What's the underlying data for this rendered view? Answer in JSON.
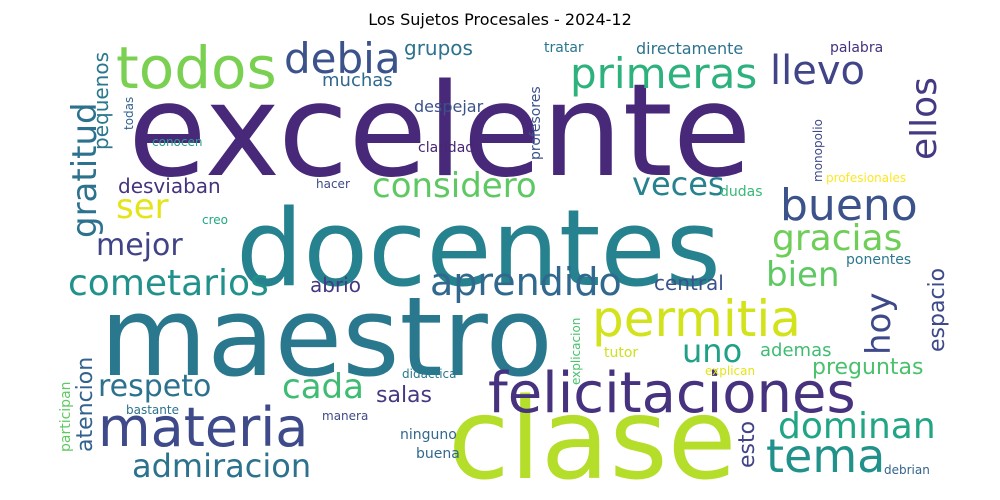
{
  "chart_data": {
    "type": "wordcloud",
    "title": "Los Sujetos Procesales - 2024-12",
    "palette": "viridis",
    "words": [
      {
        "text": "excelente",
        "color": "#482878"
      },
      {
        "text": "docentes",
        "color": "#26828e"
      },
      {
        "text": "maestro",
        "color": "#2a788e"
      },
      {
        "text": "clase",
        "color": "#b5de2b"
      },
      {
        "text": "felicitaciones",
        "color": "#46327e"
      },
      {
        "text": "todos",
        "color": "#7ad151"
      },
      {
        "text": "materia",
        "color": "#3e4a89"
      },
      {
        "text": "permitia",
        "color": "#d2e21b"
      },
      {
        "text": "primeras",
        "color": "#2db27d"
      },
      {
        "text": "debia",
        "color": "#3b528b"
      },
      {
        "text": "bueno",
        "color": "#3b528b"
      },
      {
        "text": "tema",
        "color": "#21918c"
      },
      {
        "text": "considero",
        "color": "#5ec962"
      },
      {
        "text": "aprendido",
        "color": "#31688e"
      },
      {
        "text": "cometarios",
        "color": "#21918c"
      },
      {
        "text": "gratitud",
        "color": "#2c728e"
      },
      {
        "text": "respeto",
        "color": "#2c728e"
      },
      {
        "text": "admiracion",
        "color": "#2c728e"
      },
      {
        "text": "dominan",
        "color": "#21a585"
      },
      {
        "text": "gracias",
        "color": "#6ece58"
      },
      {
        "text": "llevo",
        "color": "#414487"
      },
      {
        "text": "ellos",
        "color": "#443a83"
      },
      {
        "text": "veces",
        "color": "#26828e"
      },
      {
        "text": "mejor",
        "color": "#404387"
      },
      {
        "text": "cada",
        "color": "#3fbc73"
      },
      {
        "text": "bien",
        "color": "#5ec962"
      },
      {
        "text": "hoy",
        "color": "#3e4989"
      },
      {
        "text": "uno",
        "color": "#1fa187"
      },
      {
        "text": "ser",
        "color": "#e5e419"
      },
      {
        "text": "grupos",
        "color": "#2c728e"
      },
      {
        "text": "muchas",
        "color": "#31688e"
      },
      {
        "text": "despejar",
        "color": "#3b528b"
      },
      {
        "text": "desviaban",
        "color": "#46337e"
      },
      {
        "text": "pequenos",
        "color": "#2a788e"
      },
      {
        "text": "central",
        "color": "#3b528b"
      },
      {
        "text": "abrio",
        "color": "#453781"
      },
      {
        "text": "atencion",
        "color": "#33638d"
      },
      {
        "text": "salas",
        "color": "#443a83"
      },
      {
        "text": "esto",
        "color": "#414487"
      },
      {
        "text": "espacio",
        "color": "#3e4989"
      },
      {
        "text": "preguntas",
        "color": "#4ac16d"
      },
      {
        "text": "ademas",
        "color": "#3fbc73"
      },
      {
        "text": "ponentes",
        "color": "#2a788e"
      },
      {
        "text": "tratar",
        "color": "#2a788e"
      },
      {
        "text": "directamente",
        "color": "#2c728e"
      },
      {
        "text": "palabra",
        "color": "#46327e"
      },
      {
        "text": "profesores",
        "color": "#3b528b"
      },
      {
        "text": "claridad",
        "color": "#482575"
      },
      {
        "text": "conocen",
        "color": "#2a9d8f"
      },
      {
        "text": "todas",
        "color": "#33638d"
      },
      {
        "text": "hacer",
        "color": "#3e4a89"
      },
      {
        "text": "creo",
        "color": "#22a884"
      },
      {
        "text": "dudas",
        "color": "#37b878"
      },
      {
        "text": "monopolio",
        "color": "#3e4989"
      },
      {
        "text": "profesionales",
        "color": "#fde725"
      },
      {
        "text": "tutor",
        "color": "#cde11d"
      },
      {
        "text": "explican",
        "color": "#e5e419"
      },
      {
        "text": "explicacion",
        "color": "#4ac16d"
      },
      {
        "text": "didactica",
        "color": "#2a788e"
      },
      {
        "text": "participan",
        "color": "#5ec962"
      },
      {
        "text": "bastante",
        "color": "#2c728e"
      },
      {
        "text": "manera",
        "color": "#3e4a89"
      },
      {
        "text": "ninguno",
        "color": "#31688e"
      },
      {
        "text": "buena",
        "color": "#31688e"
      },
      {
        "text": "debrian",
        "color": "#33638d"
      }
    ]
  }
}
